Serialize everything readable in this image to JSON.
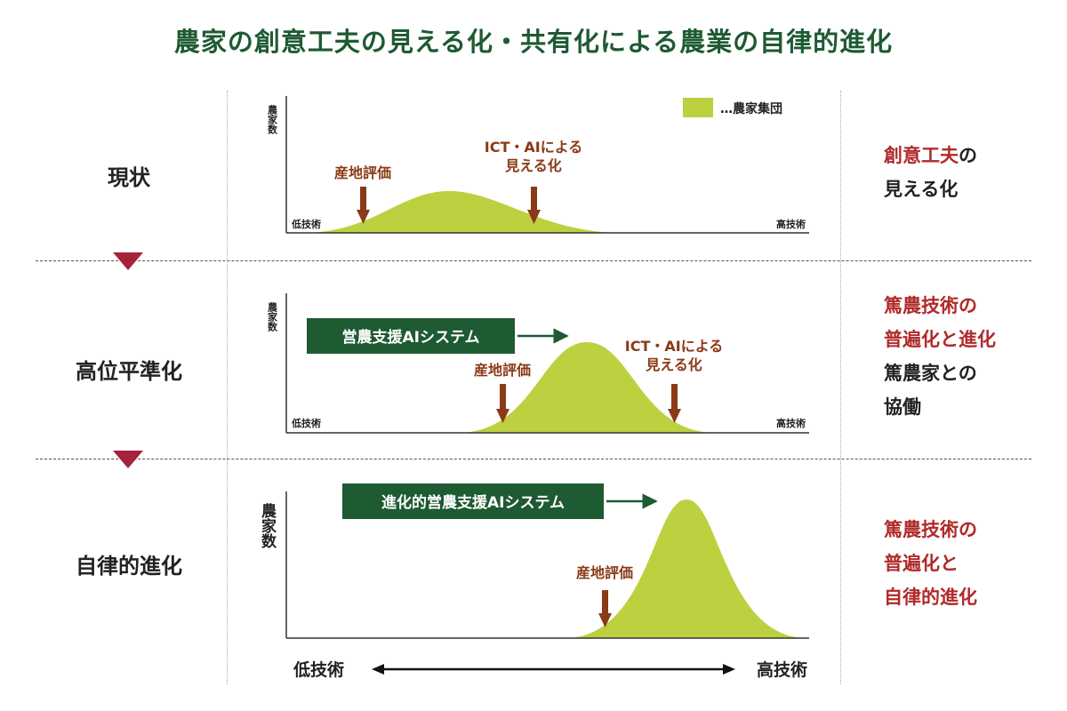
{
  "title": "農家の創意工夫の見える化・共有化による農業の自律的進化",
  "legend": {
    "label": "…農家集団"
  },
  "colors": {
    "curve": "#bdd03f",
    "arrow": "#8a3a16",
    "system_box": "#1e5a32",
    "title": "#1e5a32",
    "stage_marker": "#a8213a",
    "highlight": "#b02a2a"
  },
  "rows": [
    {
      "label": "現状",
      "y_axis_label": "農家数",
      "x_low": "低技術",
      "x_high": "高技術",
      "markers": [
        {
          "label": "産地評価"
        },
        {
          "label_line1": "ICT・AIによる",
          "label_line2": "見える化"
        }
      ],
      "description": [
        {
          "parts": [
            {
              "text": "創意工夫",
              "style": "red"
            },
            {
              "text": "の",
              "style": "dark"
            }
          ]
        },
        {
          "parts": [
            {
              "text": "見える化",
              "style": "dark"
            }
          ]
        }
      ]
    },
    {
      "label": "高位平準化",
      "y_axis_label": "農家数",
      "x_low": "低技術",
      "x_high": "高技術",
      "system_label": "営農支援AIシステム",
      "markers": [
        {
          "label": "産地評価"
        },
        {
          "label_line1": "ICT・AIによる",
          "label_line2": "見える化"
        }
      ],
      "description": [
        {
          "parts": [
            {
              "text": "篤農技術の",
              "style": "red"
            }
          ]
        },
        {
          "parts": [
            {
              "text": "普遍化と進化",
              "style": "red"
            }
          ]
        },
        {
          "parts": [
            {
              "text": "篤農家との",
              "style": "dark"
            }
          ]
        },
        {
          "parts": [
            {
              "text": "協働",
              "style": "dark"
            }
          ]
        }
      ]
    },
    {
      "label": "自律的進化",
      "y_axis_label": "農家数",
      "x_low": "低技術",
      "x_high": "高技術",
      "system_label": "進化的営農支援AIシステム",
      "markers": [
        {
          "label": "産地評価"
        }
      ],
      "description": [
        {
          "parts": [
            {
              "text": "篤農技術の",
              "style": "red"
            }
          ]
        },
        {
          "parts": [
            {
              "text": "普遍化と",
              "style": "red"
            }
          ]
        },
        {
          "parts": [
            {
              "text": "自律的進化",
              "style": "red"
            }
          ]
        }
      ]
    }
  ],
  "bottom_axis": {
    "low": "低技術",
    "high": "高技術"
  }
}
